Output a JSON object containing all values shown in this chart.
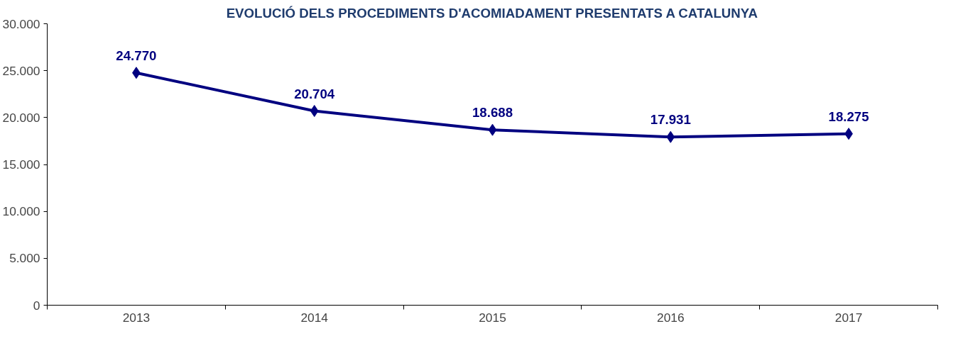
{
  "chart_data": {
    "type": "line",
    "title": "EVOLUCIÓ DELS PROCEDIMENTS D'ACOMIADAMENT PRESENTATS A CATALUNYA",
    "categories": [
      "2013",
      "2014",
      "2015",
      "2016",
      "2017"
    ],
    "series": [
      {
        "color": "#000080",
        "values": [
          24770,
          20704,
          18688,
          17931,
          18275
        ],
        "value_labels": [
          "24.770",
          "20.704",
          "18.688",
          "17.931",
          "18.275"
        ]
      }
    ],
    "ylim": [
      0,
      30000
    ],
    "yticks": [
      {
        "value": 0,
        "label": "0"
      },
      {
        "value": 5000,
        "label": "5.000"
      },
      {
        "value": 10000,
        "label": "10.000"
      },
      {
        "value": 15000,
        "label": "15.000"
      },
      {
        "value": 20000,
        "label": "20.000"
      },
      {
        "value": 25000,
        "label": "25.000"
      },
      {
        "value": 30000,
        "label": "30.000"
      }
    ],
    "grid": false,
    "marker": "diamond",
    "line_style": "solid"
  }
}
